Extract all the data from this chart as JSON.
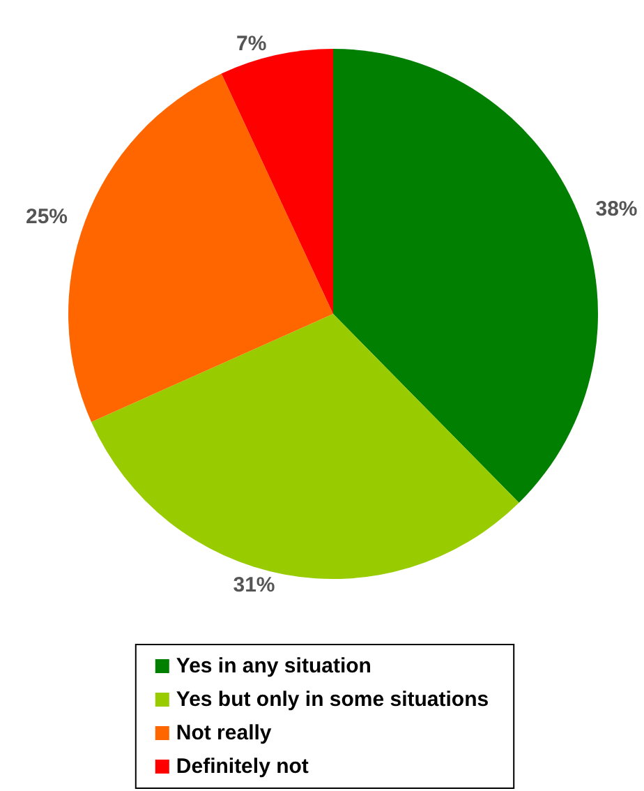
{
  "chart_data": {
    "type": "pie",
    "categories": [
      "Yes in any situation",
      "Yes but only in some situations",
      "Not really",
      "Definitely not"
    ],
    "values": [
      38,
      31,
      25,
      7
    ],
    "value_labels": [
      "38%",
      "31%",
      "25%",
      "7%"
    ],
    "colors": [
      "#007f00",
      "#99cc00",
      "#ff6600",
      "#ff0000"
    ],
    "legend": "bottom"
  }
}
